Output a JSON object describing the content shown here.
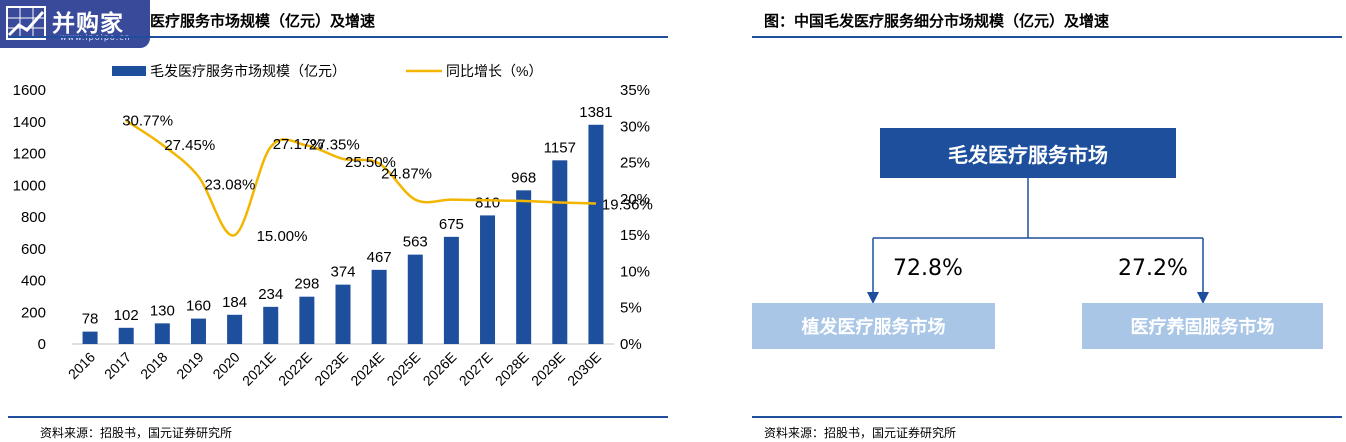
{
  "logo": {
    "name": "并购家",
    "url": "www.ipoipo.cn"
  },
  "left_panel": {
    "title": "医疗服务市场规模（亿元）及增速",
    "source": "资料来源：招股书，国元证券研究所"
  },
  "right_panel": {
    "title": "图：中国毛发医疗服务细分市场规模（亿元）及增速",
    "source": "资料来源：招股书，国元证券研究所",
    "root": "毛发医疗服务市场",
    "children": [
      {
        "label": "植发医疗服务市场",
        "share": "72.8%"
      },
      {
        "label": "医疗养固服务市场",
        "share": "27.2%"
      }
    ]
  },
  "chart_data": {
    "type": "bar",
    "categories": [
      "2016",
      "2017",
      "2018",
      "2019",
      "2020",
      "2021E",
      "2022E",
      "2023E",
      "2024E",
      "2025E",
      "2026E",
      "2027E",
      "2028E",
      "2029E",
      "2030E"
    ],
    "series": [
      {
        "name": "毛发医疗服务市场规模（亿元）",
        "type": "bar",
        "axis": "left",
        "color": "#1d4f9c",
        "values": [
          78,
          102,
          130,
          160,
          184,
          234,
          298,
          374,
          467,
          563,
          675,
          810,
          968,
          1157,
          1381
        ]
      },
      {
        "name": "同比增长（%）",
        "type": "line",
        "axis": "right",
        "color": "#f2b600",
        "values": [
          null,
          30.77,
          27.45,
          23.08,
          15.0,
          27.17,
          27.35,
          25.5,
          24.87,
          19.9,
          19.9,
          19.8,
          19.7,
          19.5,
          19.36
        ]
      }
    ],
    "line_labels": [
      {
        "index": 1,
        "text": "30.77%"
      },
      {
        "index": 2,
        "text": "27.45%"
      },
      {
        "index": 3,
        "text": "23.08%"
      },
      {
        "index": 4,
        "text": "15.00%"
      },
      {
        "index": 5,
        "text": "27.17%"
      },
      {
        "index": 6,
        "text": "27.35%"
      },
      {
        "index": 7,
        "text": "25.50%"
      },
      {
        "index": 8,
        "text": "24.87%"
      },
      {
        "index": 14,
        "text": "19.36%"
      }
    ],
    "ylim_left": [
      0,
      1600
    ],
    "yticks_left": [
      0,
      200,
      400,
      600,
      800,
      1000,
      1200,
      1400,
      1600
    ],
    "ylim_right": [
      0,
      35
    ],
    "yticks_right": [
      "0%",
      "5%",
      "10%",
      "15%",
      "20%",
      "25%",
      "30%",
      "35%"
    ],
    "legend_position": "top",
    "grid": false
  }
}
